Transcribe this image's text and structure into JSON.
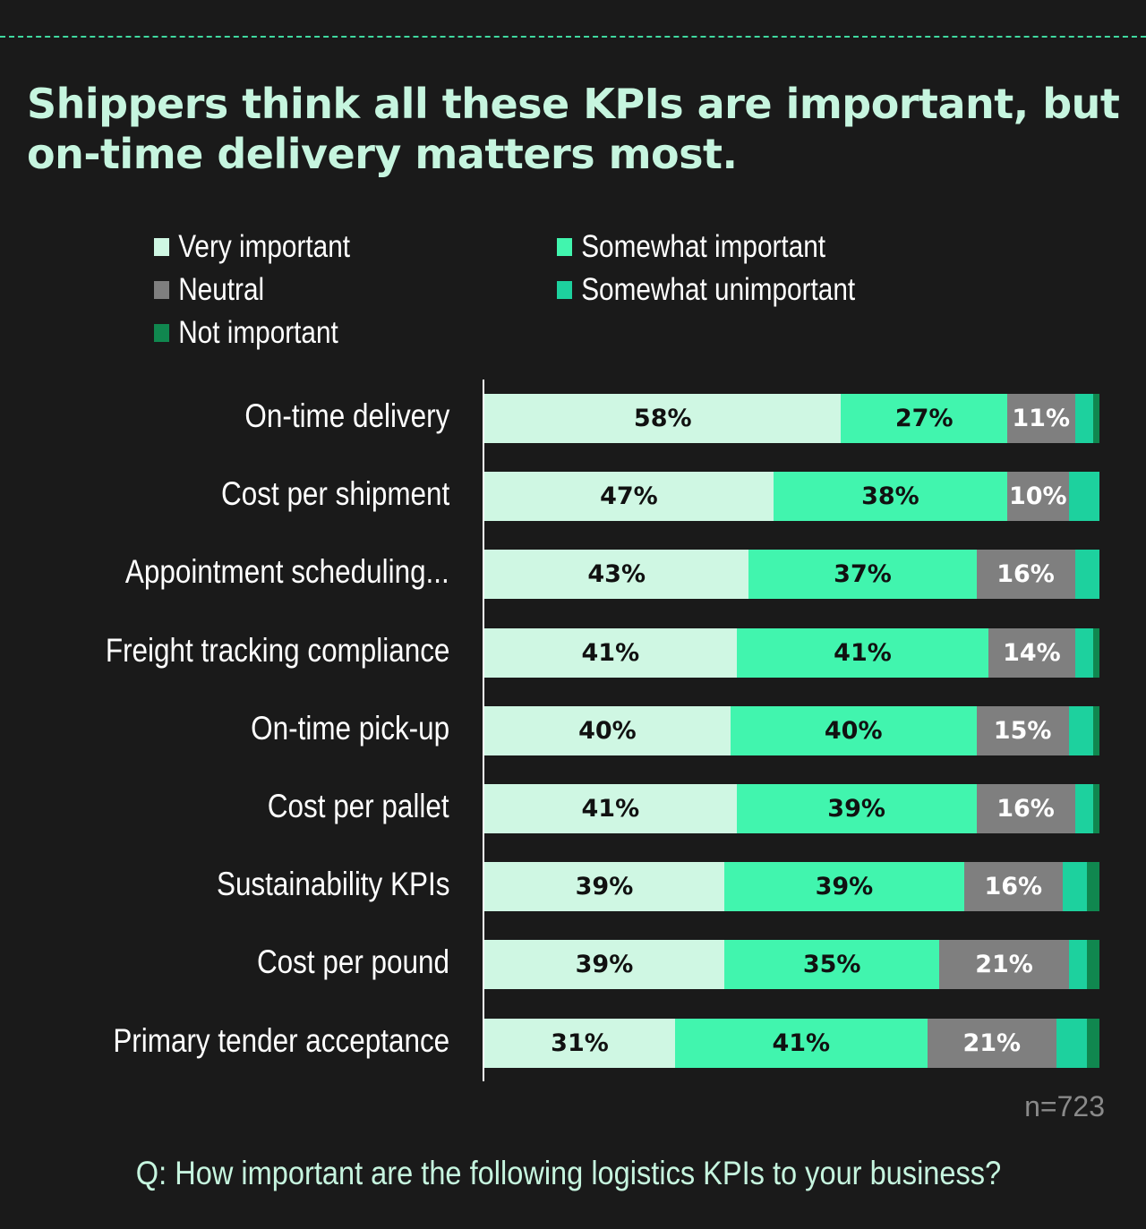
{
  "chart_data": {
    "type": "bar",
    "orientation": "horizontal",
    "stacked": true,
    "title": "Shippers think all these KPIs are important, but on-time delivery matters most.",
    "categories": [
      "On-time delivery",
      "Cost per shipment",
      "Appointment scheduling...",
      "Freight tracking compliance",
      "On-time pick-up",
      "Cost per pallet",
      "Sustainability KPIs",
      "Cost per pound",
      "Primary tender acceptance"
    ],
    "series": [
      {
        "name": "Very important",
        "color": "#cff7e3",
        "values": [
          58,
          47,
          43,
          41,
          40,
          41,
          39,
          39,
          31
        ],
        "labeled": true
      },
      {
        "name": "Somewhat important",
        "color": "#41f5ae",
        "values": [
          27,
          38,
          37,
          41,
          40,
          39,
          39,
          35,
          41
        ],
        "labeled": true
      },
      {
        "name": "Neutral",
        "color": "#7f7f7f",
        "values": [
          11,
          10,
          16,
          14,
          15,
          16,
          16,
          21,
          21
        ],
        "labeled": true
      },
      {
        "name": "Somewhat unimportant",
        "color": "#1dd19e",
        "values": [
          3,
          5,
          4,
          3,
          4,
          3,
          4,
          3,
          5
        ],
        "labeled": false
      },
      {
        "name": "Not important",
        "color": "#10874f",
        "values": [
          1,
          0,
          0,
          1,
          1,
          1,
          2,
          2,
          2
        ],
        "labeled": false
      }
    ],
    "legend_order": [
      0,
      1,
      2,
      3,
      4
    ],
    "legend": "top",
    "note": "n=723",
    "question": "Q: How important are the following logistics KPIs to your business?"
  },
  "colors": {
    "background": "#1a1a1a",
    "title": "#c6f5df",
    "accent_dash": "#3fd9a0"
  }
}
